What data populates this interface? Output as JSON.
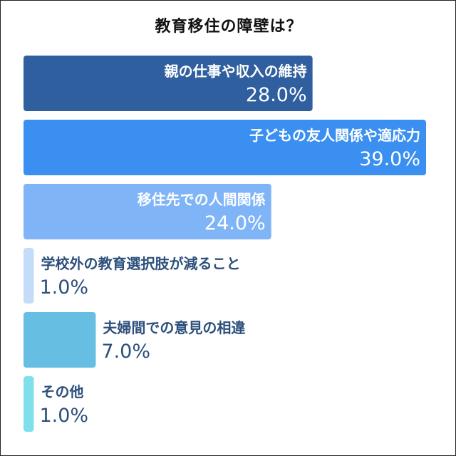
{
  "chart_data": {
    "type": "bar",
    "orientation": "horizontal",
    "title": "教育移住の障壁は？",
    "categories": [
      "親の仕事や収入の維持",
      "子どもの友人関係や適応力",
      "移住先での人間関係",
      "学校外の教育選択肢が減ること",
      "夫婦間での意見の相違",
      "その他"
    ],
    "values": [
      28.0,
      39.0,
      24.0,
      1.0,
      7.0,
      1.0
    ],
    "value_labels": [
      "28.0%",
      "39.0%",
      "24.0%",
      "1.0%",
      "7.0%",
      "1.0%"
    ],
    "colors": [
      "#2f5f9f",
      "#3a8ff0",
      "#7fb5f7",
      "#c4dcf8",
      "#66bfe3",
      "#7fe0ec"
    ],
    "label_colors": [
      "#ffffff",
      "#ffffff",
      "#ffffff",
      "#2c4f7c",
      "#2c4f7c",
      "#2c4f7c"
    ],
    "xlim": [
      0,
      39.0
    ],
    "grid": false,
    "legend": "none"
  }
}
